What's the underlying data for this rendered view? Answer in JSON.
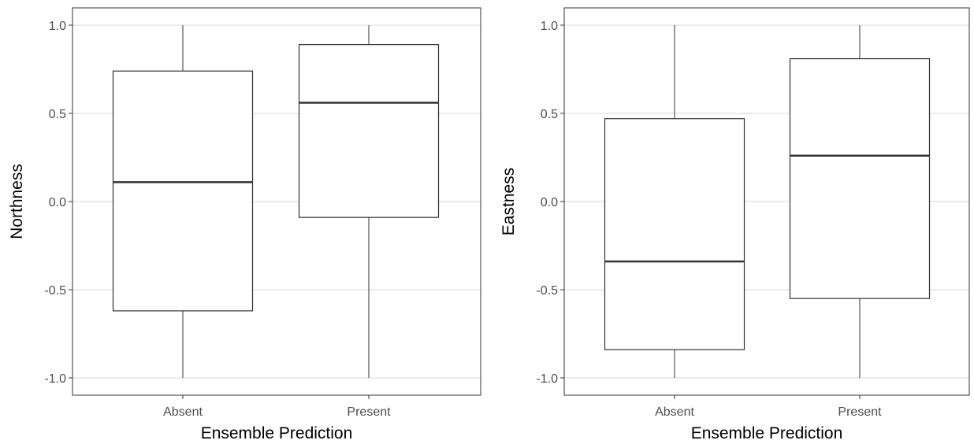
{
  "colors": {
    "background": "#ffffff",
    "panel_border": "#333333",
    "grid": "#ebebeb",
    "box_fill": "#ffffff",
    "box_stroke": "#333333",
    "tick_text": "#4d4d4d"
  },
  "chart_data": [
    {
      "type": "boxplot",
      "xlabel": "Ensemble Prediction",
      "ylabel": "Northness",
      "ylim": [
        -1.0,
        1.0
      ],
      "yticks": [
        "-1.0",
        "-0.5",
        "0.0",
        "0.5",
        "1.0"
      ],
      "categories": [
        "Absent",
        "Present"
      ],
      "boxes": [
        {
          "category": "Absent",
          "min": -1.0,
          "q1": -0.62,
          "median": 0.11,
          "q3": 0.74,
          "max": 1.0
        },
        {
          "category": "Present",
          "min": -1.0,
          "q1": -0.09,
          "median": 0.56,
          "q3": 0.89,
          "max": 1.0
        }
      ],
      "grid": true
    },
    {
      "type": "boxplot",
      "xlabel": "Ensemble Prediction",
      "ylabel": "Eastness",
      "ylim": [
        -1.0,
        1.0
      ],
      "yticks": [
        "-1.0",
        "-0.5",
        "0.0",
        "0.5",
        "1.0"
      ],
      "categories": [
        "Absent",
        "Present"
      ],
      "boxes": [
        {
          "category": "Absent",
          "min": -1.0,
          "q1": -0.84,
          "median": -0.34,
          "q3": 0.47,
          "max": 1.0
        },
        {
          "category": "Present",
          "min": -1.0,
          "q1": -0.55,
          "median": 0.26,
          "q3": 0.81,
          "max": 1.0
        }
      ],
      "grid": true
    }
  ]
}
